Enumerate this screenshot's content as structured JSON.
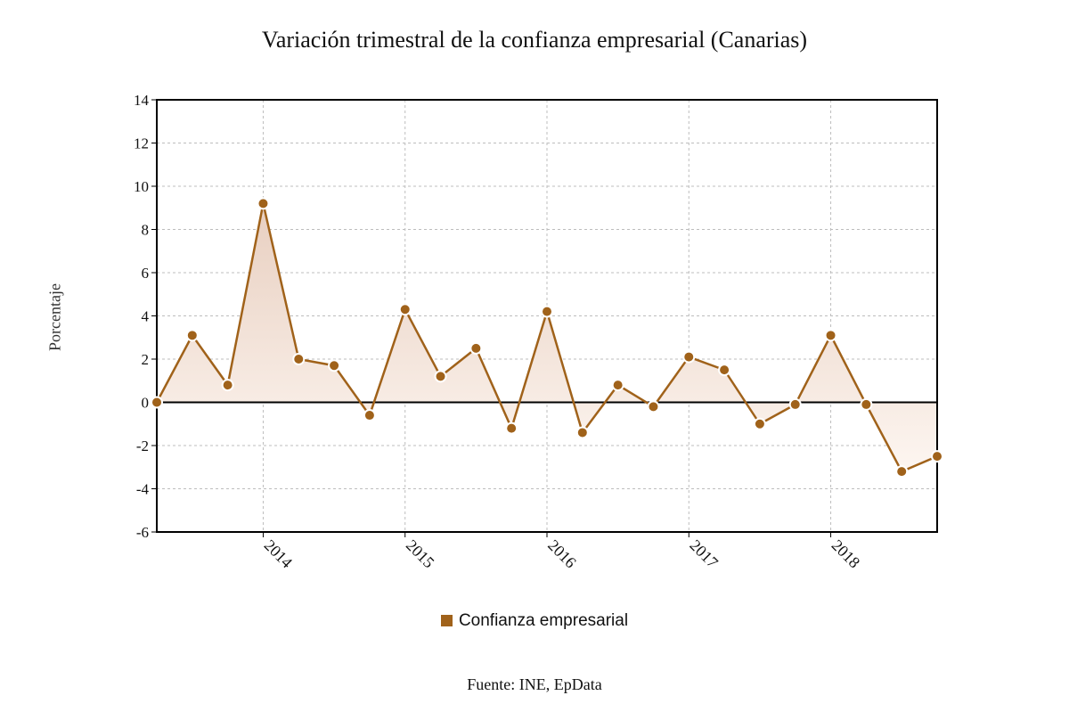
{
  "title": "Variación trimestral de la confianza empresarial (Canarias)",
  "source": "Fuente: INE, EpData",
  "colors": {
    "series": "#a0621a",
    "fill_top": "#e8cfc0",
    "fill_bottom": "#fdf6f1",
    "grid": "#bdbdbd"
  },
  "chart_data": {
    "type": "area",
    "title": "Variación trimestral de la confianza empresarial (Canarias)",
    "ylabel": "Porcentaje",
    "xlabel": "",
    "ylim": [
      -6,
      14
    ],
    "yticks": [
      -6,
      -4,
      -2,
      0,
      2,
      4,
      6,
      8,
      10,
      12,
      14
    ],
    "xticks": [
      "2014",
      "2015",
      "2016",
      "2017",
      "2018"
    ],
    "grid": true,
    "legend_position": "bottom-center",
    "x": [
      "2013 Q2",
      "2013 Q3",
      "2013 Q4",
      "2014 Q1",
      "2014 Q2",
      "2014 Q3",
      "2014 Q4",
      "2015 Q1",
      "2015 Q2",
      "2015 Q3",
      "2015 Q4",
      "2016 Q1",
      "2016 Q2",
      "2016 Q3",
      "2016 Q4",
      "2017 Q1",
      "2017 Q2",
      "2017 Q3",
      "2017 Q4",
      "2018 Q1",
      "2018 Q2",
      "2018 Q3",
      "2018 Q4"
    ],
    "series": [
      {
        "name": "Confianza empresarial",
        "values": [
          0.0,
          3.1,
          0.8,
          9.2,
          2.0,
          1.7,
          -0.6,
          4.3,
          1.2,
          2.5,
          -1.2,
          4.2,
          -1.4,
          0.8,
          -0.2,
          2.1,
          1.5,
          -1.0,
          -0.1,
          3.1,
          -0.1,
          -3.2,
          -2.5
        ]
      }
    ]
  }
}
